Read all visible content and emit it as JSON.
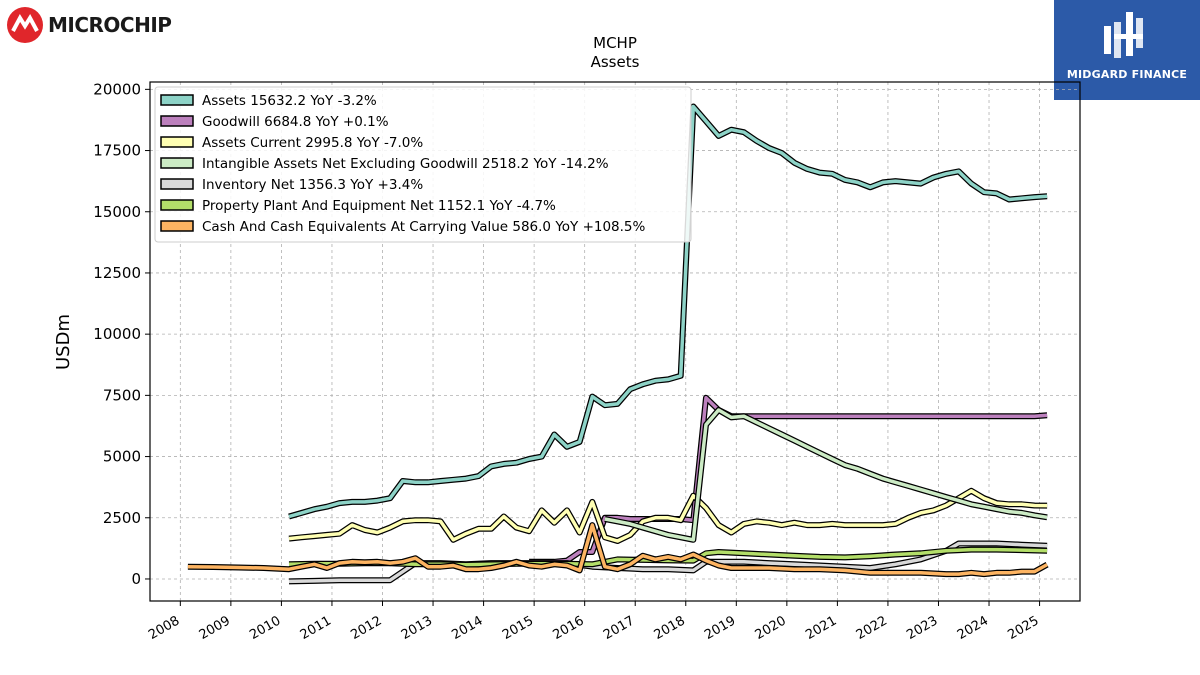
{
  "branding": {
    "left_logo_text": "MICROCHIP",
    "right_logo_text": "MIDGARD FINANCE",
    "right_logo_bg": "#2c5aa8",
    "left_logo_color": "#e0262b"
  },
  "chart_data": {
    "type": "line",
    "title": "MCHP",
    "subtitle": "Assets",
    "xlabel": "",
    "ylabel": "USDm",
    "xlim": [
      2007.4,
      2025.8
    ],
    "ylim": [
      -900,
      20300
    ],
    "x_ticks": [
      "2008",
      "2009",
      "2010",
      "2011",
      "2012",
      "2013",
      "2014",
      "2015",
      "2016",
      "2017",
      "2018",
      "2019",
      "2020",
      "2021",
      "2022",
      "2023",
      "2024",
      "2025"
    ],
    "y_ticks": [
      "0",
      "2500",
      "5000",
      "7500",
      "10000",
      "12500",
      "15000",
      "17500",
      "20000"
    ],
    "grid": true,
    "legend_position": "top-left",
    "series": [
      {
        "name": "Assets",
        "legend": "Assets  15632.2 YoY -3.2%",
        "color": "#8dd3c7",
        "x": [
          2010.15,
          2010.4,
          2010.65,
          2010.9,
          2011.15,
          2011.4,
          2011.65,
          2011.9,
          2012.15,
          2012.4,
          2012.65,
          2012.9,
          2013.15,
          2013.4,
          2013.65,
          2013.9,
          2014.15,
          2014.4,
          2014.65,
          2014.9,
          2015.15,
          2015.4,
          2015.65,
          2015.9,
          2016.15,
          2016.4,
          2016.65,
          2016.9,
          2017.15,
          2017.4,
          2017.65,
          2017.9,
          2018.15,
          2018.4,
          2018.65,
          2018.9,
          2019.15,
          2019.4,
          2019.65,
          2019.9,
          2020.15,
          2020.4,
          2020.65,
          2020.9,
          2021.15,
          2021.4,
          2021.65,
          2021.9,
          2022.15,
          2022.4,
          2022.65,
          2022.9,
          2023.15,
          2023.4,
          2023.65,
          2023.9,
          2024.15,
          2024.4,
          2024.65,
          2024.9,
          2025.15
        ],
        "y": [
          2550,
          2700,
          2850,
          2950,
          3100,
          3150,
          3150,
          3200,
          3300,
          4000,
          3950,
          3950,
          4000,
          4050,
          4100,
          4200,
          4600,
          4700,
          4750,
          4900,
          5000,
          5900,
          5400,
          5600,
          7450,
          7100,
          7150,
          7750,
          7950,
          8100,
          8150,
          8300,
          19300,
          18700,
          18100,
          18350,
          18250,
          17900,
          17600,
          17400,
          17000,
          16750,
          16600,
          16550,
          16300,
          16200,
          16000,
          16200,
          16250,
          16200,
          16150,
          16400,
          16550,
          16650,
          16150,
          15800,
          15750,
          15500,
          15550,
          15600,
          15632
        ]
      },
      {
        "name": "Goodwill",
        "legend": "Goodwill  6684.8 YoY +0.1%",
        "color": "#bc80bd",
        "x": [
          2014.9,
          2015.15,
          2015.4,
          2015.65,
          2015.9,
          2016.15,
          2016.4,
          2016.65,
          2016.9,
          2017.15,
          2017.4,
          2017.65,
          2017.9,
          2018.15,
          2018.4,
          2018.65,
          2018.9,
          2019.4,
          2019.9,
          2020.4,
          2020.9,
          2021.4,
          2021.9,
          2022.4,
          2022.9,
          2023.4,
          2023.9,
          2024.4,
          2024.9,
          2025.15
        ],
        "y": [
          700,
          700,
          700,
          750,
          1100,
          1100,
          2500,
          2500,
          2450,
          2450,
          2450,
          2450,
          2450,
          2400,
          7400,
          6900,
          6650,
          6650,
          6650,
          6650,
          6650,
          6650,
          6650,
          6650,
          6650,
          6650,
          6650,
          6650,
          6650,
          6685
        ]
      },
      {
        "name": "Assets Current",
        "legend": "Assets Current  2995.8 YoY -7.0%",
        "color": "#ffffb3",
        "x": [
          2010.15,
          2010.4,
          2010.65,
          2010.9,
          2011.15,
          2011.4,
          2011.65,
          2011.9,
          2012.15,
          2012.4,
          2012.65,
          2012.9,
          2013.15,
          2013.4,
          2013.65,
          2013.9,
          2014.15,
          2014.4,
          2014.65,
          2014.9,
          2015.15,
          2015.4,
          2015.65,
          2015.9,
          2016.15,
          2016.4,
          2016.65,
          2016.9,
          2017.15,
          2017.4,
          2017.65,
          2017.9,
          2018.15,
          2018.4,
          2018.65,
          2018.9,
          2019.15,
          2019.4,
          2019.65,
          2019.9,
          2020.15,
          2020.4,
          2020.65,
          2020.9,
          2021.15,
          2021.4,
          2021.65,
          2021.9,
          2022.15,
          2022.4,
          2022.65,
          2022.9,
          2023.15,
          2023.4,
          2023.65,
          2023.9,
          2024.15,
          2024.4,
          2024.65,
          2024.9,
          2025.15
        ],
        "y": [
          1650,
          1700,
          1750,
          1800,
          1850,
          2200,
          2000,
          1900,
          2100,
          2350,
          2400,
          2400,
          2350,
          1600,
          1850,
          2050,
          2050,
          2550,
          2100,
          1950,
          2800,
          2300,
          2800,
          1900,
          3150,
          1700,
          1550,
          1800,
          2350,
          2500,
          2500,
          2400,
          3400,
          2900,
          2200,
          1900,
          2250,
          2350,
          2300,
          2200,
          2300,
          2200,
          2200,
          2250,
          2200,
          2200,
          2200,
          2200,
          2250,
          2500,
          2700,
          2800,
          3000,
          3300,
          3600,
          3300,
          3100,
          3050,
          3050,
          3000,
          2996
        ]
      },
      {
        "name": "Intangible Assets Net Excluding Goodwill",
        "legend": "Intangible Assets Net Excluding Goodwill  2518.2 YoY -14.2%",
        "color": "#ccebc5",
        "x": [
          2016.4,
          2016.65,
          2016.9,
          2017.15,
          2017.4,
          2017.65,
          2017.9,
          2018.15,
          2018.4,
          2018.65,
          2018.9,
          2019.15,
          2019.4,
          2019.65,
          2019.9,
          2020.15,
          2020.4,
          2020.65,
          2020.9,
          2021.15,
          2021.4,
          2021.65,
          2021.9,
          2022.15,
          2022.4,
          2022.65,
          2022.9,
          2023.15,
          2023.4,
          2023.65,
          2023.9,
          2024.15,
          2024.4,
          2024.65,
          2024.9,
          2025.15
        ],
        "y": [
          2450,
          2350,
          2250,
          2100,
          1950,
          1800,
          1700,
          1600,
          6300,
          6900,
          6600,
          6650,
          6400,
          6150,
          5900,
          5650,
          5400,
          5150,
          4900,
          4650,
          4500,
          4300,
          4100,
          3950,
          3800,
          3650,
          3500,
          3350,
          3200,
          3050,
          2950,
          2850,
          2750,
          2700,
          2600,
          2518
        ]
      },
      {
        "name": "Inventory Net",
        "legend": "Inventory Net  1356.3 YoY +3.4%",
        "color": "#d9d9d9",
        "x": [
          2010.15,
          2010.65,
          2011.15,
          2011.65,
          2012.15,
          2012.65,
          2013.15,
          2013.65,
          2014.15,
          2014.65,
          2015.15,
          2015.65,
          2016.15,
          2016.65,
          2017.15,
          2017.65,
          2018.15,
          2018.4,
          2018.65,
          2019.15,
          2019.65,
          2020.15,
          2020.65,
          2021.15,
          2021.65,
          2022.15,
          2022.65,
          2023.15,
          2023.4,
          2023.65,
          2024.15,
          2024.65,
          2025.15
        ],
        "y": [
          -100,
          -80,
          -50,
          -50,
          -50,
          650,
          650,
          600,
          650,
          650,
          650,
          650,
          500,
          450,
          400,
          400,
          350,
          700,
          700,
          700,
          650,
          600,
          550,
          500,
          450,
          600,
          800,
          1150,
          1450,
          1450,
          1450,
          1400,
          1356
        ]
      },
      {
        "name": "Property Plant And Equipment Net",
        "legend": "Property Plant And Equipment Net  1152.1 YoY -4.7%",
        "color": "#b3de69",
        "x": [
          2010.15,
          2010.65,
          2011.15,
          2011.65,
          2012.15,
          2012.65,
          2013.15,
          2013.65,
          2014.15,
          2014.65,
          2015.15,
          2015.65,
          2016.15,
          2016.65,
          2017.15,
          2017.65,
          2018.15,
          2018.4,
          2018.65,
          2019.15,
          2019.65,
          2020.15,
          2020.65,
          2021.15,
          2021.65,
          2022.15,
          2022.65,
          2023.15,
          2023.65,
          2024.15,
          2024.65,
          2025.15
        ],
        "y": [
          600,
          620,
          620,
          640,
          640,
          600,
          600,
          580,
          600,
          620,
          620,
          620,
          600,
          800,
          780,
          760,
          750,
          1050,
          1100,
          1050,
          1000,
          950,
          900,
          880,
          930,
          1000,
          1050,
          1150,
          1200,
          1200,
          1180,
          1152
        ]
      },
      {
        "name": "Cash And Cash Equivalents At Carrying Value",
        "legend": "Cash And Cash Equivalents At Carrying Value  586.0 YoY +108.5%",
        "color": "#fdb462",
        "x": [
          2008.15,
          2008.65,
          2009.15,
          2009.65,
          2010.15,
          2010.4,
          2010.65,
          2010.9,
          2011.15,
          2011.4,
          2011.65,
          2011.9,
          2012.15,
          2012.4,
          2012.65,
          2012.9,
          2013.15,
          2013.4,
          2013.65,
          2013.9,
          2014.15,
          2014.4,
          2014.65,
          2014.9,
          2015.15,
          2015.4,
          2015.65,
          2015.9,
          2016.15,
          2016.4,
          2016.65,
          2016.9,
          2017.15,
          2017.4,
          2017.65,
          2017.9,
          2018.15,
          2018.4,
          2018.65,
          2018.9,
          2019.15,
          2019.65,
          2020.15,
          2020.65,
          2021.15,
          2021.65,
          2022.15,
          2022.65,
          2023.15,
          2023.4,
          2023.65,
          2023.9,
          2024.15,
          2024.4,
          2024.65,
          2024.9,
          2025.15
        ],
        "y": [
          500,
          490,
          470,
          450,
          400,
          500,
          600,
          450,
          650,
          700,
          680,
          700,
          650,
          700,
          850,
          500,
          500,
          550,
          400,
          400,
          450,
          550,
          700,
          550,
          500,
          600,
          550,
          350,
          2200,
          500,
          400,
          600,
          950,
          800,
          900,
          800,
          1000,
          750,
          550,
          450,
          450,
          450,
          400,
          400,
          350,
          250,
          250,
          250,
          200,
          200,
          250,
          200,
          250,
          250,
          300,
          300,
          586
        ]
      }
    ]
  }
}
